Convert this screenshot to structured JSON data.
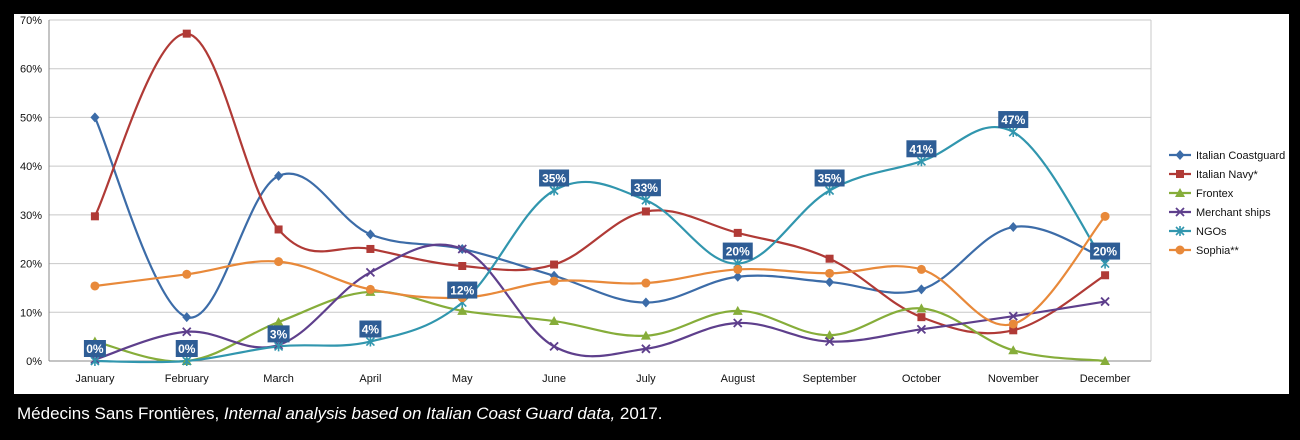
{
  "chart_data": {
    "type": "line",
    "categories": [
      "January",
      "February",
      "March",
      "April",
      "May",
      "June",
      "July",
      "August",
      "September",
      "October",
      "November",
      "December"
    ],
    "y_ticks": [
      "0%",
      "10%",
      "20%",
      "30%",
      "40%",
      "50%",
      "60%",
      "70%"
    ],
    "ylim": [
      0,
      70
    ],
    "grid": true,
    "legend_position": "right",
    "series": [
      {
        "name": "Italian Coastguard",
        "color": "#3C6CA8",
        "marker": "diamond",
        "values": [
          50,
          9,
          38,
          26,
          23,
          17.5,
          12,
          17.3,
          16.2,
          14.7,
          27.5,
          21
        ]
      },
      {
        "name": "Italian Navy*",
        "color": "#B03A36",
        "marker": "square",
        "values": [
          29.7,
          67.2,
          27,
          23,
          19.5,
          19.8,
          30.7,
          26.3,
          21,
          9,
          6.3,
          17.6
        ]
      },
      {
        "name": "Frontex",
        "color": "#86AD3A",
        "marker": "triangle",
        "values": [
          4,
          0,
          8,
          14.2,
          10.3,
          8.2,
          5.2,
          10.3,
          5.3,
          10.8,
          2.2,
          0
        ]
      },
      {
        "name": "Merchant ships",
        "color": "#5E3F8C",
        "marker": "x",
        "values": [
          0.3,
          6,
          3.3,
          18.2,
          23,
          3,
          2.5,
          7.8,
          4,
          6.5,
          9.2,
          12.2
        ]
      },
      {
        "name": "NGOs",
        "color": "#3196AE",
        "marker": "star",
        "values": [
          0,
          0,
          3,
          4,
          12,
          35,
          33,
          20,
          35,
          41,
          47,
          20
        ]
      },
      {
        "name": "Sophia**",
        "color": "#E8893A",
        "marker": "circle",
        "values": [
          15.4,
          17.8,
          20.4,
          14.7,
          13,
          16.4,
          16,
          18.8,
          18,
          18.8,
          7.6,
          29.7
        ]
      }
    ],
    "data_labels": [
      {
        "index": 0,
        "text": "0%"
      },
      {
        "index": 1,
        "text": "0%"
      },
      {
        "index": 2,
        "text": "3%"
      },
      {
        "index": 3,
        "text": "4%"
      },
      {
        "index": 4,
        "text": "12%"
      },
      {
        "index": 5,
        "text": "35%"
      },
      {
        "index": 6,
        "text": "33%"
      },
      {
        "index": 7,
        "text": "20%"
      },
      {
        "index": 8,
        "text": "35%"
      },
      {
        "index": 9,
        "text": "41%"
      },
      {
        "index": 10,
        "text": "47%"
      },
      {
        "index": 11,
        "text": "20%"
      }
    ],
    "data_label_series": "NGOs",
    "data_label_color": "#2E5D95"
  },
  "caption": {
    "prefix": "Médecins Sans Frontières, ",
    "italic": "Internal analysis based on Italian Coast Guard data,",
    "suffix": " 2017."
  }
}
